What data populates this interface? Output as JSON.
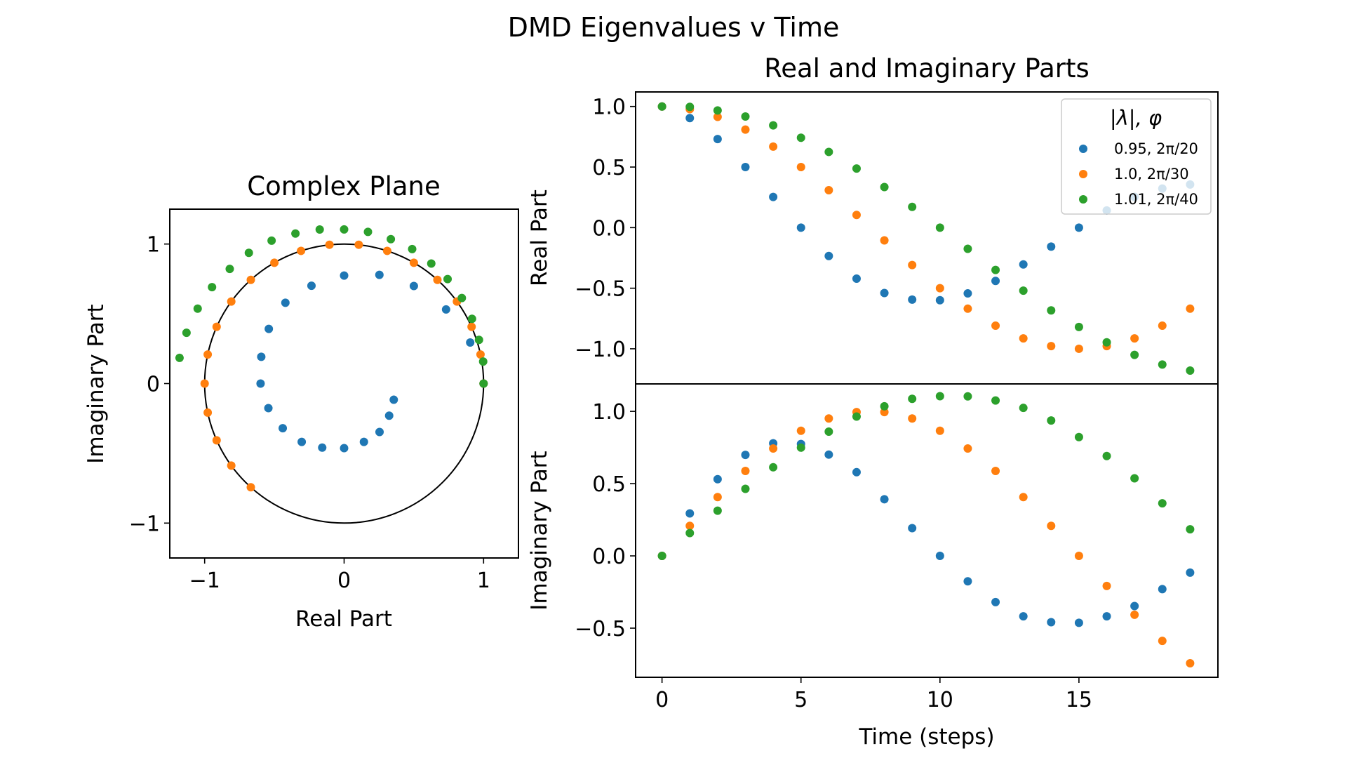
{
  "figure": {
    "title": "DMD Eigenvalues v Time"
  },
  "legend": {
    "title": "|λ|, φ",
    "placement": "upper-right of Real Part panel"
  },
  "chart_data": [
    {
      "type": "scatter",
      "title": "Complex Plane",
      "xlabel": "Real Part",
      "ylabel": "Imaginary Part",
      "xlim": [
        -1.25,
        1.25
      ],
      "ylim": [
        -1.25,
        1.25
      ],
      "xticks": [
        -1,
        0,
        1
      ],
      "xtick_labels": [
        "−1",
        "0",
        "1"
      ],
      "yticks": [
        -1,
        0,
        1
      ],
      "ytick_labels": [
        "−1",
        "0",
        "1"
      ],
      "grid": false,
      "unit_circle": true,
      "series": [
        {
          "name": "0.95, 2π/20",
          "color": "#1f77b4",
          "x": [
            1.0,
            0.904,
            0.731,
            0.5,
            0.253,
            0.0,
            -0.234,
            -0.421,
            -0.54,
            -0.594,
            -0.599,
            -0.543,
            -0.44,
            -0.304,
            -0.157,
            0.0,
            0.142,
            0.254,
            0.323,
            0.356
          ],
          "y": [
            0.0,
            0.294,
            0.531,
            0.699,
            0.779,
            0.774,
            0.701,
            0.579,
            0.392,
            0.192,
            0.0,
            -0.176,
            -0.32,
            -0.418,
            -0.459,
            -0.463,
            -0.418,
            -0.347,
            -0.23,
            -0.116
          ]
        },
        {
          "name": "1.0, 2π/30",
          "color": "#ff7f0e",
          "x": [
            1.0,
            0.978,
            0.914,
            0.809,
            0.669,
            0.5,
            0.309,
            0.105,
            -0.105,
            -0.309,
            -0.5,
            -0.669,
            -0.809,
            -0.914,
            -0.978,
            -1.0,
            -0.978,
            -0.914,
            -0.809,
            -0.669
          ],
          "y": [
            0.0,
            0.208,
            0.407,
            0.588,
            0.743,
            0.866,
            0.951,
            0.995,
            0.995,
            0.951,
            0.866,
            0.743,
            0.588,
            0.407,
            0.208,
            0.0,
            -0.208,
            -0.407,
            -0.588,
            -0.743
          ]
        },
        {
          "name": "1.01, 2π/40",
          "color": "#2ca02c",
          "x": [
            1.0,
            0.997,
            0.967,
            0.917,
            0.844,
            0.742,
            0.625,
            0.488,
            0.335,
            0.171,
            0.0,
            -0.175,
            -0.349,
            -0.52,
            -0.683,
            -0.82,
            -0.947,
            -1.05,
            -1.13,
            -1.18
          ],
          "y": [
            0.0,
            0.158,
            0.313,
            0.464,
            0.613,
            0.749,
            0.86,
            0.964,
            1.035,
            1.087,
            1.105,
            1.104,
            1.075,
            1.024,
            0.937,
            0.822,
            0.691,
            0.537,
            0.364,
            0.184
          ]
        }
      ]
    },
    {
      "type": "scatter",
      "title": "Real and Imaginary Parts",
      "xlabel": "",
      "ylabel": "Real Part",
      "xlim": [
        -0.95,
        20.0
      ],
      "ylim": [
        -1.29,
        1.12
      ],
      "yticks": [
        1.0,
        0.5,
        0.0,
        -0.5,
        -1.0
      ],
      "ytick_labels": [
        "1.0",
        "0.5",
        "0.0",
        "−0.5",
        "−1.0"
      ],
      "grid": false,
      "x": [
        0,
        1,
        2,
        3,
        4,
        5,
        6,
        7,
        8,
        9,
        10,
        11,
        12,
        13,
        14,
        15,
        16,
        17,
        18,
        19
      ],
      "series": [
        {
          "name": "0.95, 2π/20",
          "color": "#1f77b4",
          "values": [
            1.0,
            0.904,
            0.731,
            0.5,
            0.253,
            0.0,
            -0.234,
            -0.421,
            -0.54,
            -0.594,
            -0.599,
            -0.543,
            -0.44,
            -0.304,
            -0.157,
            0.0,
            0.142,
            0.254,
            0.323,
            0.356
          ]
        },
        {
          "name": "1.0, 2π/30",
          "color": "#ff7f0e",
          "values": [
            1.0,
            0.978,
            0.914,
            0.809,
            0.669,
            0.5,
            0.309,
            0.105,
            -0.105,
            -0.309,
            -0.5,
            -0.669,
            -0.809,
            -0.914,
            -0.978,
            -1.0,
            -0.978,
            -0.914,
            -0.809,
            -0.669
          ]
        },
        {
          "name": "1.01, 2π/40",
          "color": "#2ca02c",
          "values": [
            1.0,
            0.997,
            0.967,
            0.917,
            0.844,
            0.742,
            0.625,
            0.488,
            0.335,
            0.171,
            0.0,
            -0.175,
            -0.349,
            -0.52,
            -0.683,
            -0.82,
            -0.947,
            -1.05,
            -1.13,
            -1.18
          ]
        }
      ]
    },
    {
      "type": "scatter",
      "title": "",
      "xlabel": "Time (steps)",
      "ylabel": "Imaginary Part",
      "xlim": [
        -0.95,
        20.0
      ],
      "ylim": [
        -0.84,
        1.19
      ],
      "xticks": [
        0,
        5,
        10,
        15
      ],
      "xtick_labels": [
        "0",
        "5",
        "10",
        "15"
      ],
      "yticks": [
        1.0,
        0.5,
        0.0,
        -0.5
      ],
      "ytick_labels": [
        "1.0",
        "0.5",
        "0.0",
        "−0.5"
      ],
      "grid": false,
      "x": [
        0,
        1,
        2,
        3,
        4,
        5,
        6,
        7,
        8,
        9,
        10,
        11,
        12,
        13,
        14,
        15,
        16,
        17,
        18,
        19
      ],
      "series": [
        {
          "name": "0.95, 2π/20",
          "color": "#1f77b4",
          "values": [
            0.0,
            0.294,
            0.531,
            0.699,
            0.779,
            0.774,
            0.701,
            0.579,
            0.392,
            0.192,
            0.0,
            -0.176,
            -0.32,
            -0.418,
            -0.459,
            -0.463,
            -0.418,
            -0.347,
            -0.23,
            -0.116
          ]
        },
        {
          "name": "1.0, 2π/30",
          "color": "#ff7f0e",
          "values": [
            0.0,
            0.208,
            0.407,
            0.588,
            0.743,
            0.866,
            0.951,
            0.995,
            0.995,
            0.951,
            0.866,
            0.743,
            0.588,
            0.407,
            0.208,
            0.0,
            -0.208,
            -0.407,
            -0.588,
            -0.743
          ]
        },
        {
          "name": "1.01, 2π/40",
          "color": "#2ca02c",
          "values": [
            0.0,
            0.158,
            0.313,
            0.464,
            0.613,
            0.749,
            0.86,
            0.964,
            1.035,
            1.087,
            1.105,
            1.104,
            1.075,
            1.024,
            0.937,
            0.822,
            0.691,
            0.537,
            0.364,
            0.184
          ]
        }
      ]
    }
  ]
}
